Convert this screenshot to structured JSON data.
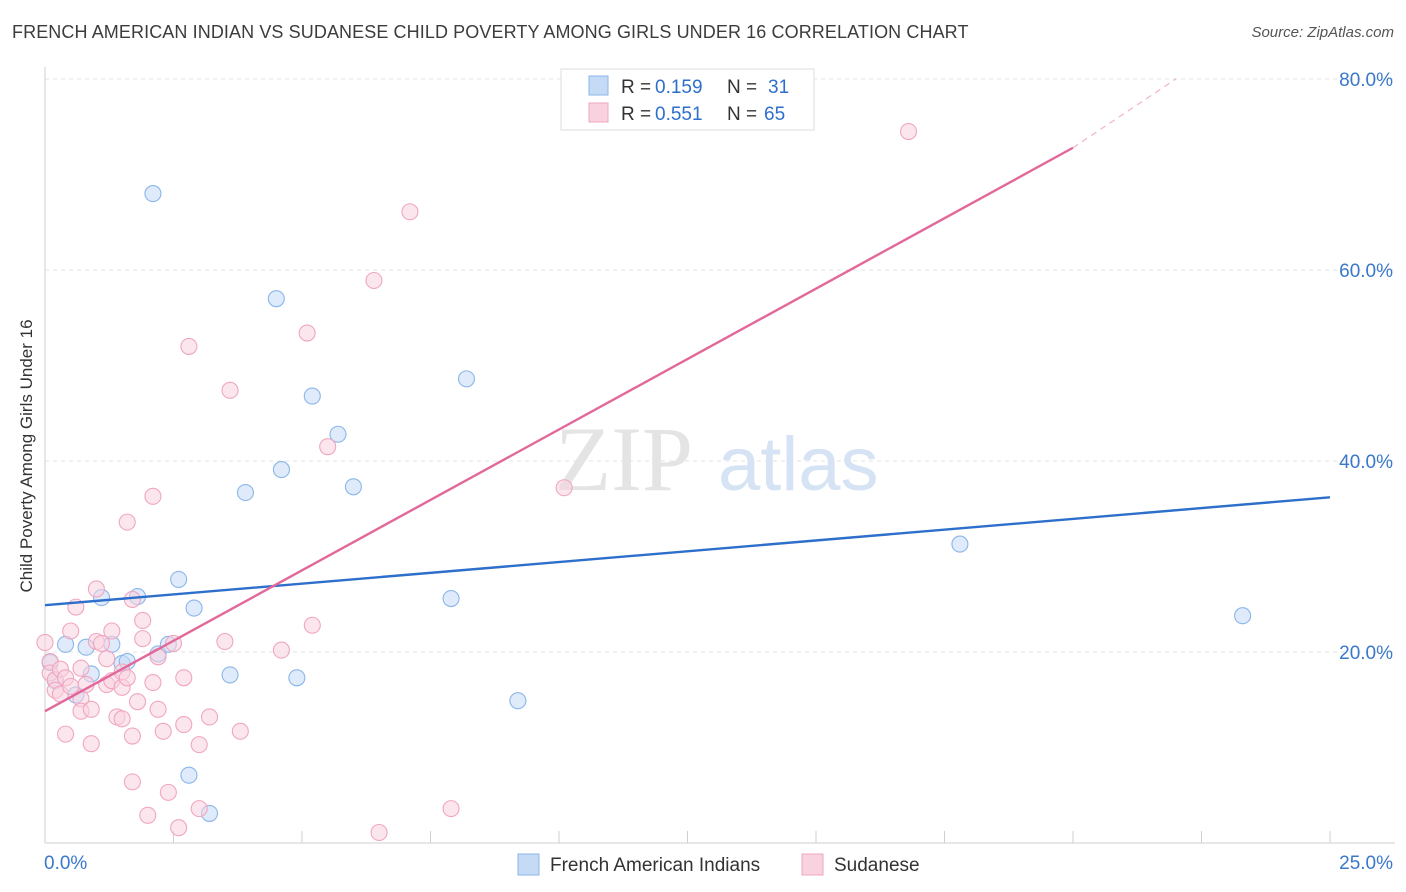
{
  "title": "FRENCH AMERICAN INDIAN VS SUDANESE CHILD POVERTY AMONG GIRLS UNDER 16 CORRELATION CHART",
  "source": "Source: ZipAtlas.com",
  "watermark": {
    "zip": "ZIP",
    "atlas": "atlas"
  },
  "chart_data": {
    "type": "scatter",
    "title": "FRENCH AMERICAN INDIAN VS SUDANESE CHILD POVERTY AMONG GIRLS UNDER 16 CORRELATION CHART",
    "xlabel": "",
    "ylabel": "Child Poverty Among Girls Under 16",
    "xlim": [
      0,
      25
    ],
    "ylim": [
      0,
      80
    ],
    "x_tick_labels": [
      "0.0%",
      "25.0%"
    ],
    "y_ticks": [
      20,
      40,
      60,
      80
    ],
    "y_tick_labels": [
      "20.0%",
      "40.0%",
      "60.0%",
      "80.0%"
    ],
    "grid": true,
    "legend_position": "top-center",
    "stats": [
      {
        "r_label": "R =",
        "r_value": "0.159",
        "n_label": "N =",
        "n_value": "31"
      },
      {
        "r_label": "R =",
        "r_value": "0.551",
        "n_label": "N =",
        "n_value": "65"
      }
    ],
    "series": [
      {
        "name": "French American Indians",
        "color": "#8ab6ea",
        "fill": "#c5dbf5",
        "line_color": "#2e6fcb",
        "trend": {
          "x0": 0,
          "y0": 24.9,
          "x1": 25,
          "y1": 36.2
        },
        "points": [
          [
            0.1,
            18.9
          ],
          [
            0.2,
            17.0
          ],
          [
            0.4,
            20.8
          ],
          [
            0.6,
            15.5
          ],
          [
            0.8,
            20.5
          ],
          [
            0.9,
            17.7
          ],
          [
            1.1,
            25.7
          ],
          [
            1.3,
            20.8
          ],
          [
            1.5,
            18.8
          ],
          [
            1.6,
            19.0
          ],
          [
            1.8,
            25.8
          ],
          [
            2.1,
            68.0
          ],
          [
            2.2,
            19.8
          ],
          [
            2.4,
            20.8
          ],
          [
            2.6,
            27.6
          ],
          [
            2.8,
            7.1
          ],
          [
            2.9,
            24.6
          ],
          [
            3.2,
            3.1
          ],
          [
            3.6,
            17.6
          ],
          [
            3.9,
            36.7
          ],
          [
            4.5,
            57.0
          ],
          [
            4.6,
            39.1
          ],
          [
            4.9,
            17.3
          ],
          [
            5.2,
            46.8
          ],
          [
            5.7,
            42.8
          ],
          [
            6.0,
            37.3
          ],
          [
            7.9,
            25.6
          ],
          [
            8.2,
            48.6
          ],
          [
            9.2,
            14.9
          ],
          [
            17.8,
            31.3
          ],
          [
            23.3,
            23.8
          ]
        ]
      },
      {
        "name": "Sudanese",
        "color": "#f0a6c0",
        "fill": "#f9d2df",
        "line_color": "#e2689a",
        "trend": {
          "x0": 0,
          "y0": 13.8,
          "x1": 20.0,
          "y1": 72.8
        },
        "trend_dashed_to": {
          "x": 22.0,
          "y": 80.0
        },
        "points": [
          [
            0.0,
            21.0
          ],
          [
            0.1,
            19.0
          ],
          [
            0.1,
            17.8
          ],
          [
            0.2,
            17.1
          ],
          [
            0.2,
            16.0
          ],
          [
            0.3,
            15.6
          ],
          [
            0.3,
            18.2
          ],
          [
            0.4,
            17.3
          ],
          [
            0.4,
            11.4
          ],
          [
            0.5,
            16.4
          ],
          [
            0.5,
            22.2
          ],
          [
            0.6,
            24.7
          ],
          [
            0.7,
            15.1
          ],
          [
            0.7,
            13.8
          ],
          [
            0.7,
            18.3
          ],
          [
            0.8,
            16.6
          ],
          [
            0.9,
            10.4
          ],
          [
            0.9,
            14.0
          ],
          [
            1.0,
            26.6
          ],
          [
            1.0,
            21.1
          ],
          [
            1.1,
            20.9
          ],
          [
            1.2,
            16.6
          ],
          [
            1.2,
            19.3
          ],
          [
            1.3,
            22.2
          ],
          [
            1.3,
            17.0
          ],
          [
            1.4,
            13.2
          ],
          [
            1.5,
            13.0
          ],
          [
            1.5,
            17.9
          ],
          [
            1.5,
            16.3
          ],
          [
            1.6,
            33.6
          ],
          [
            1.6,
            17.3
          ],
          [
            1.7,
            6.4
          ],
          [
            1.7,
            11.2
          ],
          [
            1.7,
            25.5
          ],
          [
            1.8,
            14.8
          ],
          [
            1.9,
            23.3
          ],
          [
            1.9,
            21.4
          ],
          [
            2.0,
            2.9
          ],
          [
            2.1,
            16.8
          ],
          [
            2.1,
            36.3
          ],
          [
            2.2,
            19.5
          ],
          [
            2.2,
            14.0
          ],
          [
            2.3,
            11.7
          ],
          [
            2.4,
            5.3
          ],
          [
            2.5,
            20.9
          ],
          [
            2.6,
            1.6
          ],
          [
            2.7,
            17.3
          ],
          [
            2.7,
            12.4
          ],
          [
            2.8,
            52.0
          ],
          [
            3.0,
            10.3
          ],
          [
            3.0,
            3.6
          ],
          [
            3.2,
            13.2
          ],
          [
            3.5,
            21.1
          ],
          [
            3.6,
            47.4
          ],
          [
            3.8,
            11.7
          ],
          [
            4.6,
            20.2
          ],
          [
            5.1,
            53.4
          ],
          [
            5.2,
            22.8
          ],
          [
            5.5,
            41.5
          ],
          [
            6.4,
            58.9
          ],
          [
            6.5,
            1.1
          ],
          [
            7.1,
            66.1
          ],
          [
            7.9,
            3.6
          ],
          [
            10.1,
            37.2
          ],
          [
            16.8,
            74.5
          ]
        ]
      }
    ]
  }
}
